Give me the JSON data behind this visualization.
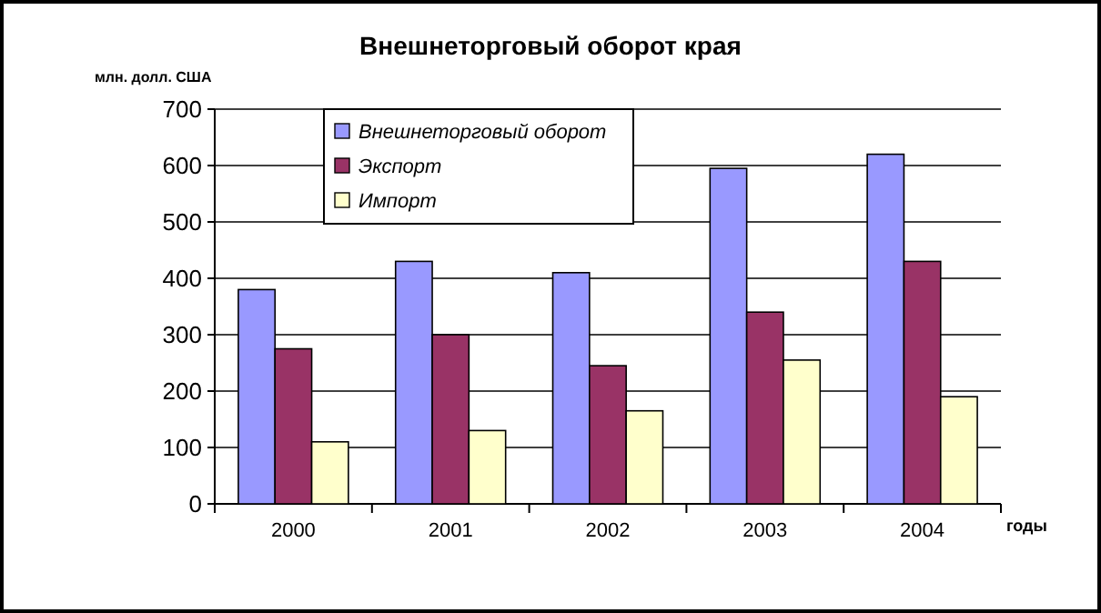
{
  "chart_data": {
    "type": "bar",
    "title": "Внешнеторговый оборот края",
    "ylabel": "млн. долл. США",
    "xlabel": "годы",
    "categories": [
      "2000",
      "2001",
      "2002",
      "2003",
      "2004"
    ],
    "series": [
      {
        "name": "Внешнеторговый оборот",
        "color": "#9999ff",
        "values": [
          380,
          430,
          410,
          595,
          620
        ]
      },
      {
        "name": "Экспорт",
        "color": "#993366",
        "values": [
          275,
          300,
          245,
          340,
          430
        ]
      },
      {
        "name": "Импорт",
        "color": "#ffffcc",
        "values": [
          110,
          130,
          165,
          255,
          190
        ]
      }
    ],
    "ylim": [
      0,
      700
    ],
    "yticks": [
      0,
      100,
      200,
      300,
      400,
      500,
      600,
      700
    ],
    "grid": "y",
    "legend": "top left"
  }
}
